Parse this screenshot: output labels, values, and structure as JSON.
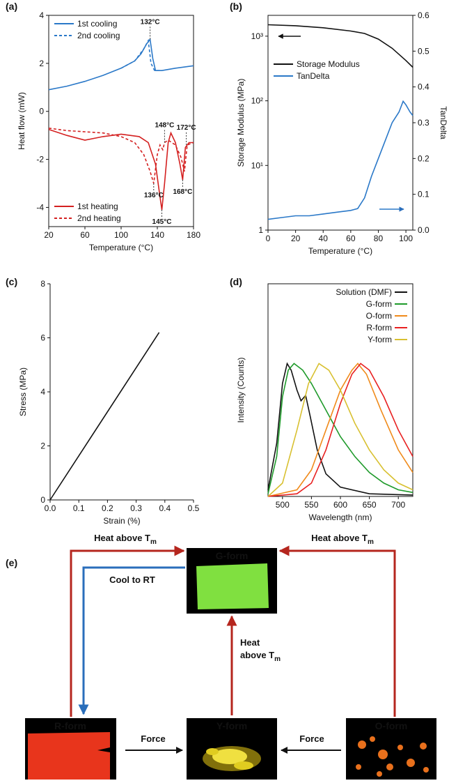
{
  "chart_data": [
    {
      "type": "line",
      "panel": "(a)",
      "xlabel": "Temperature (°C)",
      "ylabel": "Heat flow (mW)",
      "box": true,
      "xlim": [
        20,
        180
      ],
      "xticks": [
        20,
        60,
        100,
        140,
        180
      ],
      "ylim": [
        -4.8,
        4
      ],
      "yticks": [
        -4,
        -2,
        0,
        2,
        4
      ],
      "series": [
        {
          "name": "1st cooling",
          "color": "#2a78c8",
          "dash": false,
          "legend": "upper left",
          "x": [
            20,
            40,
            60,
            80,
            100,
            115,
            122,
            128,
            132,
            135,
            138,
            145,
            160,
            180
          ],
          "values": [
            0.9,
            1.05,
            1.25,
            1.5,
            1.8,
            2.1,
            2.4,
            2.8,
            3.0,
            2.2,
            1.7,
            1.7,
            1.8,
            1.9
          ]
        },
        {
          "name": "2nd cooling",
          "color": "#2a78c8",
          "dash": true,
          "legend": "upper left",
          "x": [
            100,
            115,
            125,
            130,
            133,
            137,
            145
          ],
          "values": [
            1.8,
            2.1,
            2.6,
            2.95,
            2.0,
            1.7,
            1.7
          ]
        },
        {
          "name": "1st heating",
          "color": "#d42020",
          "dash": false,
          "legend": "lower left",
          "x": [
            20,
            40,
            60,
            80,
            100,
            120,
            130,
            138,
            142,
            145,
            148,
            152,
            155,
            160,
            165,
            168,
            171,
            175,
            180
          ],
          "values": [
            -0.75,
            -1.0,
            -1.2,
            -1.05,
            -0.95,
            -1.05,
            -1.3,
            -2.2,
            -3.3,
            -4.1,
            -3.0,
            -1.3,
            -0.9,
            -1.3,
            -2.2,
            -2.85,
            -1.5,
            -1.3,
            -1.3
          ]
        },
        {
          "name": "2nd heating",
          "color": "#d42020",
          "dash": true,
          "legend": "lower left",
          "x": [
            20,
            40,
            60,
            80,
            100,
            115,
            125,
            132,
            136,
            140,
            143,
            146,
            148,
            152,
            160,
            166,
            170,
            173,
            180
          ],
          "values": [
            -0.7,
            -0.8,
            -0.85,
            -0.9,
            -1.05,
            -1.3,
            -1.8,
            -2.5,
            -3.0,
            -1.8,
            -1.4,
            -1.6,
            -1.3,
            -1.2,
            -1.4,
            -1.9,
            -2.5,
            -1.4,
            -1.3
          ]
        }
      ],
      "annotations": [
        {
          "label": "132°C",
          "x": 132,
          "y": 3.0,
          "pos": "above"
        },
        {
          "label": "148°C",
          "x": 148,
          "y": -1.3,
          "pos": "above"
        },
        {
          "label": "172°C",
          "x": 172,
          "y": -1.4,
          "pos": "above"
        },
        {
          "label": "136°C",
          "x": 136,
          "y": -3.0,
          "pos": "below"
        },
        {
          "label": "145°C",
          "x": 145,
          "y": -4.1,
          "pos": "below"
        },
        {
          "label": "168°C",
          "x": 168,
          "y": -2.85,
          "pos": "below"
        }
      ]
    },
    {
      "type": "line",
      "panel": "(b)",
      "xlabel": "Temperature (°C)",
      "ylabel": "Storage Modulus (MPa)",
      "y2label": "TanDelta",
      "box": true,
      "xlim": [
        0,
        105
      ],
      "xticks": [
        0,
        20,
        40,
        60,
        80,
        100
      ],
      "ylog": true,
      "ylim": [
        1,
        2100
      ],
      "yticks": [
        1,
        {
          "value": 10,
          "label": "10¹"
        },
        {
          "value": 100,
          "label": "10²"
        },
        {
          "value": 1000,
          "label": "10³"
        }
      ],
      "y2lim": [
        0,
        0.6
      ],
      "y2ticks": [
        {
          "value": 0,
          "label": "0.0"
        },
        0.1,
        0.2,
        0.3,
        0.4,
        0.5,
        0.6
      ],
      "series": [
        {
          "name": "Storage Modulus",
          "color": "#111111",
          "dash": false,
          "legend": "upper left",
          "x": [
            0,
            20,
            40,
            60,
            70,
            80,
            90,
            100,
            105
          ],
          "values": [
            1500,
            1450,
            1350,
            1200,
            1100,
            900,
            650,
            420,
            330
          ]
        },
        {
          "name": "TanDelta",
          "color": "#2a78c8",
          "dash": false,
          "legend": "upper left",
          "axis": "y2",
          "x": [
            0,
            10,
            20,
            30,
            40,
            50,
            60,
            65,
            70,
            75,
            80,
            85,
            90,
            95,
            98,
            100,
            103,
            105
          ],
          "values": [
            0.03,
            0.035,
            0.04,
            0.04,
            0.045,
            0.05,
            0.055,
            0.06,
            0.09,
            0.15,
            0.2,
            0.25,
            0.3,
            0.33,
            0.36,
            0.35,
            0.33,
            0.32
          ]
        }
      ]
    },
    {
      "type": "line",
      "panel": "(c)",
      "xlabel": "Strain (%)",
      "ylabel": "Stress (MPa)",
      "box": false,
      "xlim": [
        0,
        0.5
      ],
      "xticks": [
        {
          "value": 0,
          "label": "0.0"
        },
        0.1,
        0.2,
        0.3,
        0.4,
        0.5
      ],
      "ylim": [
        0,
        8
      ],
      "yticks": [
        0,
        2,
        4,
        6,
        8
      ],
      "x": [
        0,
        0.38
      ],
      "values": [
        0,
        6.2
      ],
      "color": "#111111"
    },
    {
      "type": "line",
      "panel": "(d)",
      "xlabel": "Wavelength (nm)",
      "ylabel": "Intensity (Counts)",
      "box": true,
      "xlim": [
        475,
        725
      ],
      "xticks": [
        500,
        550,
        600,
        650,
        700
      ],
      "ylim": [
        0,
        1.6
      ],
      "series": [
        {
          "name": "Solution (DMF)",
          "color": "#111111",
          "dash": false,
          "legend": "upper right",
          "x": [
            475,
            490,
            500,
            508,
            515,
            525,
            532,
            540,
            548,
            560,
            575,
            600,
            650,
            725
          ],
          "values": [
            0.05,
            0.4,
            0.85,
            1.0,
            0.95,
            0.8,
            0.72,
            0.76,
            0.6,
            0.35,
            0.17,
            0.07,
            0.02,
            0.01
          ]
        },
        {
          "name": "G-form",
          "color": "#1e9a2a",
          "dash": false,
          "legend": "upper right",
          "x": [
            475,
            490,
            500,
            510,
            520,
            535,
            550,
            575,
            600,
            625,
            650,
            675,
            700,
            725
          ],
          "values": [
            0.02,
            0.3,
            0.75,
            0.95,
            1.0,
            0.95,
            0.85,
            0.65,
            0.45,
            0.3,
            0.18,
            0.1,
            0.05,
            0.03
          ]
        },
        {
          "name": "O-form",
          "color": "#f08a1a",
          "dash": false,
          "legend": "upper right",
          "x": [
            475,
            525,
            550,
            575,
            600,
            620,
            630,
            645,
            670,
            700,
            725
          ],
          "values": [
            0,
            0.05,
            0.2,
            0.5,
            0.8,
            0.95,
            1.0,
            0.92,
            0.65,
            0.35,
            0.18
          ]
        },
        {
          "name": "R-form",
          "color": "#e82020",
          "dash": false,
          "legend": "upper right",
          "x": [
            475,
            525,
            550,
            575,
            600,
            620,
            635,
            650,
            675,
            700,
            725
          ],
          "values": [
            0,
            0.02,
            0.1,
            0.35,
            0.7,
            0.92,
            1.0,
            0.95,
            0.75,
            0.5,
            0.3
          ]
        },
        {
          "name": "Y-form",
          "color": "#d8c030",
          "dash": false,
          "legend": "upper right",
          "x": [
            475,
            500,
            525,
            545,
            563,
            580,
            600,
            625,
            650,
            675,
            700,
            725
          ],
          "values": [
            0,
            0.1,
            0.5,
            0.85,
            1.0,
            0.95,
            0.8,
            0.55,
            0.35,
            0.2,
            0.1,
            0.05
          ]
        }
      ]
    }
  ],
  "diagram": {
    "panel": "(e)",
    "nodes": [
      {
        "label": "G-form",
        "color": "#1ec040"
      },
      {
        "label": "R-form",
        "color": "#f02010"
      },
      {
        "label": "Y-form",
        "color": "#f0e020"
      },
      {
        "label": "O-form",
        "color": "#f07a1a"
      }
    ],
    "edges": [
      {
        "text": "Heat above T",
        "subscript": "m"
      },
      {
        "text": "Cool to RT"
      },
      {
        "text": "Heat above T",
        "subscript": "m"
      },
      {
        "lines": [
          "Heat",
          "above T"
        ],
        "subscript": "m"
      },
      {
        "text": "Force"
      },
      {
        "text": "Force"
      }
    ]
  }
}
